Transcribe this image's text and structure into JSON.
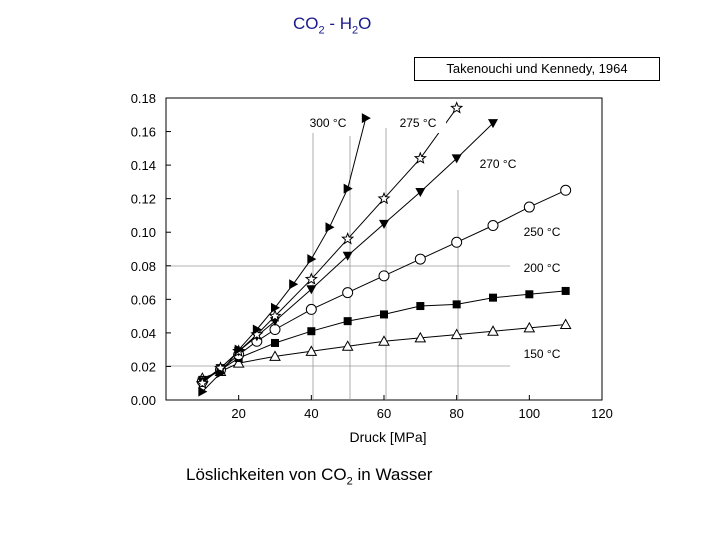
{
  "header": {
    "title_main": "CO",
    "title_sub1": "2",
    "title_sep": " - H",
    "title_sub2": "2",
    "title_end": "O"
  },
  "source_label": "Takenouchi und Kennedy, 1964",
  "caption": {
    "part1": "Löslichkeiten von CO",
    "sub": "2",
    "part2": " in Wasser"
  },
  "chart_data": {
    "type": "line",
    "title": "",
    "xlabel": "Druck [MPa]",
    "ylabel": "",
    "xlim": [
      0,
      120
    ],
    "ylim": [
      0,
      0.18
    ],
    "xticks": [
      "20",
      "40",
      "60",
      "80",
      "100",
      "120"
    ],
    "yticks": [
      "0.00",
      "0.02",
      "0.04",
      "0.06",
      "0.08",
      "0.10",
      "0.12",
      "0.14",
      "0.16",
      "0.18"
    ],
    "grid": false,
    "series": [
      {
        "name": "150 °C",
        "marker": "triangle-open",
        "x": [
          10,
          15,
          20,
          30,
          40,
          50,
          60,
          70,
          80,
          90,
          100,
          110
        ],
        "y": [
          0.013,
          0.017,
          0.022,
          0.026,
          0.029,
          0.032,
          0.035,
          0.037,
          0.039,
          0.041,
          0.043,
          0.045
        ]
      },
      {
        "name": "200 °C",
        "marker": "square-filled",
        "x": [
          10,
          15,
          20,
          30,
          40,
          50,
          60,
          70,
          80,
          90,
          100,
          110
        ],
        "y": [
          0.012,
          0.018,
          0.025,
          0.034,
          0.041,
          0.047,
          0.051,
          0.056,
          0.057,
          0.061,
          0.063,
          0.065
        ]
      },
      {
        "name": "250 °C",
        "marker": "circle-open",
        "x": [
          10,
          15,
          20,
          25,
          30,
          40,
          50,
          60,
          70,
          80,
          90,
          100,
          110
        ],
        "y": [
          0.011,
          0.018,
          0.027,
          0.035,
          0.042,
          0.054,
          0.064,
          0.074,
          0.084,
          0.094,
          0.104,
          0.115,
          0.125
        ]
      },
      {
        "name": "270 °C",
        "marker": "triangle-down-filled",
        "x": [
          10,
          15,
          20,
          25,
          30,
          40,
          50,
          60,
          70,
          80,
          90
        ],
        "y": [
          0.011,
          0.019,
          0.029,
          0.038,
          0.047,
          0.066,
          0.086,
          0.105,
          0.124,
          0.144,
          0.165
        ]
      },
      {
        "name": "275 °C",
        "marker": "star-open",
        "x": [
          10,
          15,
          20,
          25,
          30,
          40,
          50,
          60,
          70,
          80
        ],
        "y": [
          0.01,
          0.019,
          0.029,
          0.039,
          0.05,
          0.072,
          0.096,
          0.12,
          0.144,
          0.174
        ]
      },
      {
        "name": "300 °C",
        "marker": "triangle-right-filled",
        "x": [
          10,
          15,
          20,
          25,
          30,
          35,
          40,
          45,
          50,
          55
        ],
        "y": [
          0.005,
          0.016,
          0.03,
          0.042,
          0.055,
          0.069,
          0.084,
          0.103,
          0.126,
          0.168
        ]
      }
    ],
    "annotations": [
      "300 °C",
      "275 °C",
      "270 °C",
      "250 °C",
      "200 °C",
      "150 °C"
    ]
  }
}
